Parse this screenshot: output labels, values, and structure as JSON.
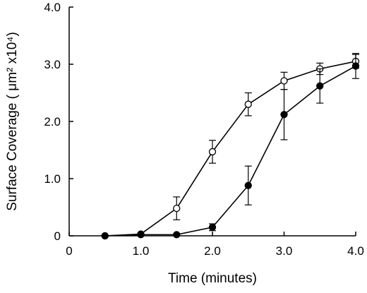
{
  "chart_data": {
    "type": "line",
    "xlabel": "Time (minutes)",
    "ylabel_text": "Surface Coverage ( μm² x10⁴)",
    "xlim": [
      0,
      4.0
    ],
    "ylim": [
      0,
      4.0
    ],
    "x_ticks": [
      0,
      1.0,
      2.0,
      3.0,
      4.0
    ],
    "x_tick_labels": [
      "0",
      "1.0",
      "2.0",
      "3.0",
      "4.0"
    ],
    "y_ticks": [
      0,
      1.0,
      2.0,
      3.0,
      4.0
    ],
    "y_tick_labels": [
      "0",
      "1.0",
      "2.0",
      "3.0",
      "4.0"
    ],
    "grid": false,
    "legend": "none",
    "series": [
      {
        "marker": "open-circle",
        "x": [
          0.5,
          1.0,
          1.5,
          2.0,
          2.5,
          3.0,
          3.5,
          4.0
        ],
        "y": [
          0.0,
          0.03,
          0.48,
          1.47,
          2.3,
          2.71,
          2.92,
          3.05
        ],
        "err": [
          0.0,
          0.0,
          0.2,
          0.2,
          0.2,
          0.15,
          0.1,
          0.12
        ]
      },
      {
        "marker": "filled-circle",
        "x": [
          0.5,
          1.0,
          1.5,
          2.0,
          2.5,
          3.0,
          3.5,
          4.0
        ],
        "y": [
          0.0,
          0.02,
          0.02,
          0.15,
          0.88,
          2.12,
          2.62,
          2.97
        ],
        "err": [
          0.0,
          0.0,
          0.0,
          0.06,
          0.34,
          0.44,
          0.3,
          0.22
        ]
      }
    ]
  }
}
